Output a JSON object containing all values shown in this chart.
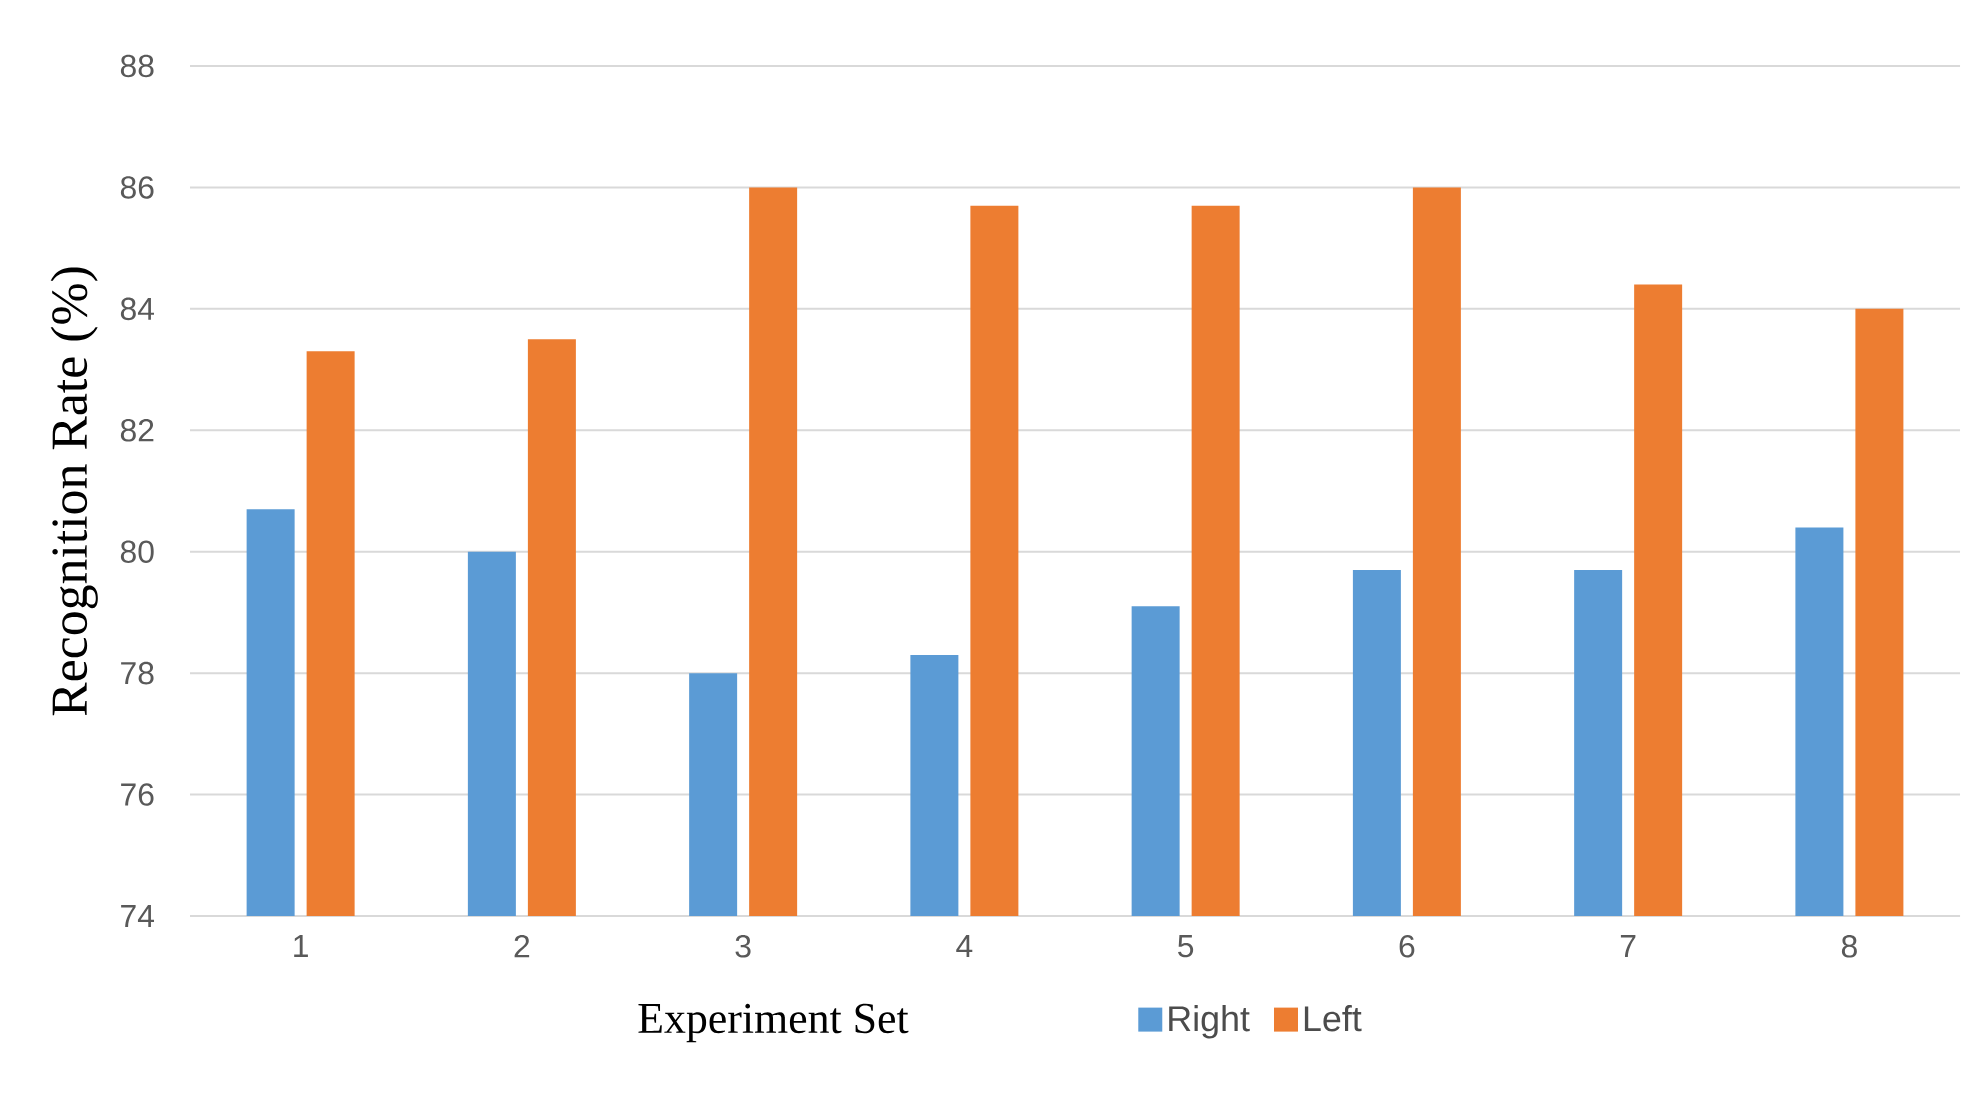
{
  "chart_data": {
    "type": "bar",
    "xlabel": "Experiment Set",
    "ylabel": "Recognition Rate (%)",
    "categories": [
      "1",
      "2",
      "3",
      "4",
      "5",
      "6",
      "7",
      "8"
    ],
    "series": [
      {
        "name": "Right",
        "color": "#5b9bd5",
        "values": [
          80.7,
          80.0,
          78.0,
          78.3,
          79.1,
          79.7,
          79.7,
          80.4
        ]
      },
      {
        "name": "Left",
        "color": "#ed7d31",
        "values": [
          83.3,
          83.5,
          86.0,
          85.7,
          85.7,
          86.0,
          84.4,
          84.0
        ]
      }
    ],
    "ylim": [
      74,
      88
    ],
    "yticks": [
      74,
      76,
      78,
      80,
      82,
      84,
      86,
      88
    ],
    "grid": "y",
    "legend": "bottom"
  }
}
